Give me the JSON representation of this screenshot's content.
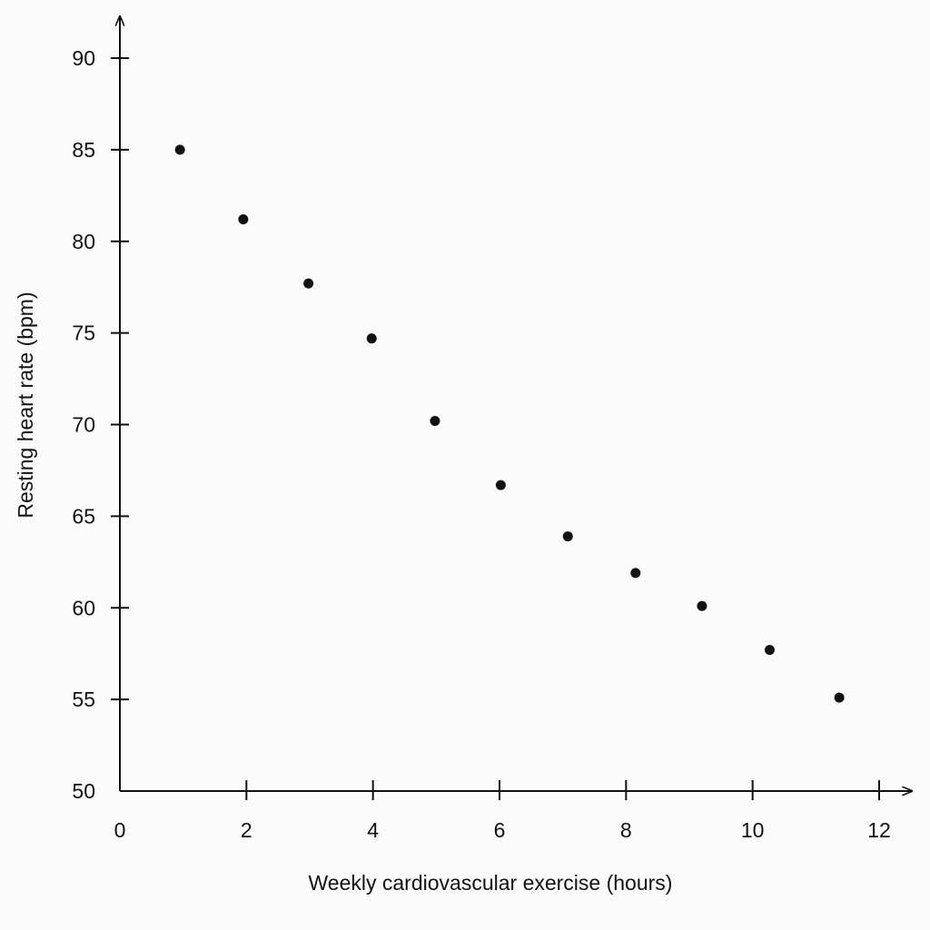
{
  "chart_data": {
    "type": "scatter",
    "title": "",
    "xlabel": "Weekly cardiovascular exercise (hours)",
    "ylabel": "Resting heart rate (bpm)",
    "xlim": [
      0,
      12
    ],
    "ylim": [
      50,
      90
    ],
    "xticks": [
      0,
      2,
      4,
      6,
      8,
      10,
      12
    ],
    "yticks": [
      50,
      55,
      60,
      65,
      70,
      75,
      80,
      85,
      90
    ],
    "grid": false,
    "legend": "none",
    "marker_color": "#111111",
    "points": [
      {
        "x": 0.95,
        "y": 85.0
      },
      {
        "x": 1.95,
        "y": 81.2
      },
      {
        "x": 2.98,
        "y": 77.7
      },
      {
        "x": 3.98,
        "y": 74.7
      },
      {
        "x": 4.98,
        "y": 70.2
      },
      {
        "x": 6.02,
        "y": 66.7
      },
      {
        "x": 7.08,
        "y": 63.9
      },
      {
        "x": 8.15,
        "y": 61.9
      },
      {
        "x": 9.2,
        "y": 60.1
      },
      {
        "x": 10.27,
        "y": 57.7
      },
      {
        "x": 11.37,
        "y": 55.1
      }
    ]
  }
}
